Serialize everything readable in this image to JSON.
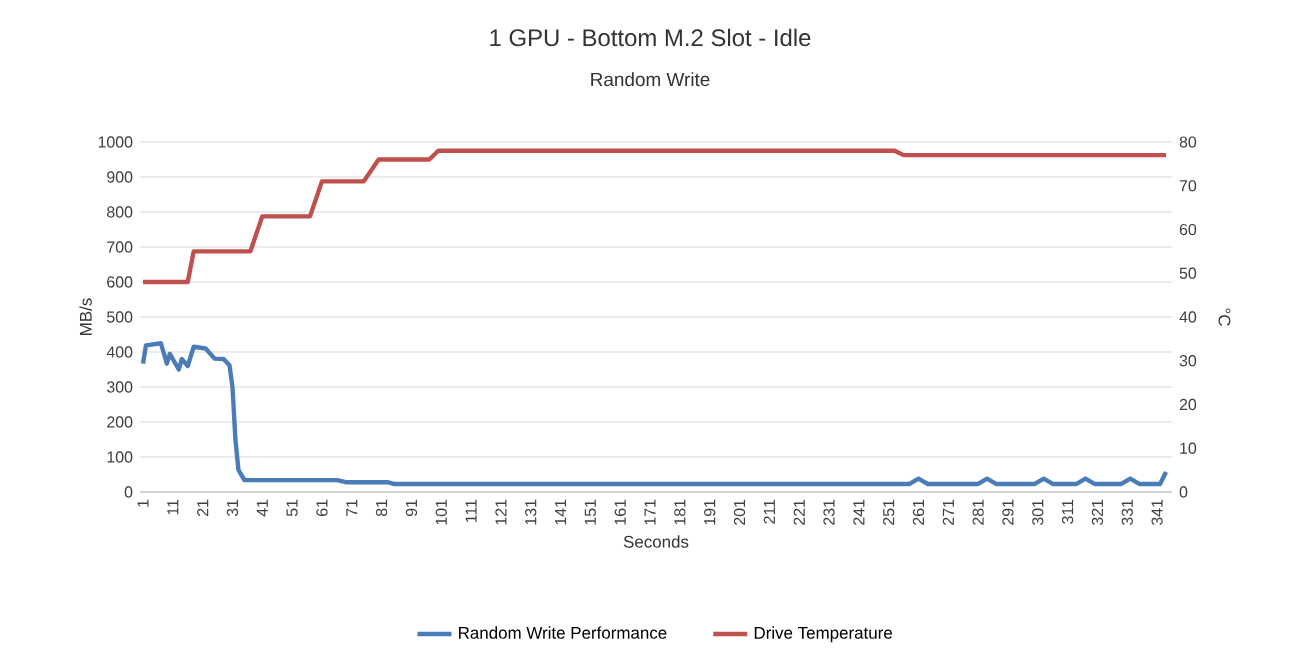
{
  "chart_data": {
    "type": "line",
    "title": "1 GPU - Bottom M.2 Slot - Idle",
    "subtitle": "Random Write",
    "xlabel": "Seconds",
    "ylabel": "MB/s",
    "y2label": "°C",
    "xlim": [
      0,
      346
    ],
    "xticks": [
      1,
      11,
      21,
      31,
      41,
      51,
      61,
      71,
      81,
      91,
      101,
      111,
      121,
      131,
      141,
      151,
      161,
      171,
      181,
      191,
      201,
      211,
      221,
      231,
      241,
      251,
      261,
      271,
      281,
      291,
      301,
      311,
      321,
      331,
      341
    ],
    "ylim": [
      0,
      1000
    ],
    "yticks": [
      0,
      100,
      200,
      300,
      400,
      500,
      600,
      700,
      800,
      900,
      1000
    ],
    "y2lim": [
      0,
      80
    ],
    "y2ticks": [
      0,
      10,
      20,
      30,
      40,
      50,
      60,
      70,
      80
    ],
    "grid": "y",
    "legend": "bottom",
    "series": [
      {
        "name": "Random Write Performance",
        "color": "#4a7db8",
        "x": [
          1,
          2,
          7,
          9,
          10,
          13,
          14,
          16,
          18,
          22,
          25,
          28,
          30,
          31,
          32,
          33,
          35,
          66,
          69,
          83,
          85,
          258,
          261,
          264,
          281,
          284,
          287,
          300,
          303,
          306,
          314,
          317,
          320,
          329,
          332,
          335,
          342,
          344
        ],
        "values": [
          367,
          419,
          425,
          367,
          395,
          350,
          380,
          360,
          415,
          410,
          381,
          380,
          362,
          300,
          149,
          63,
          34,
          34,
          28,
          28,
          23,
          23,
          38,
          23,
          23,
          38,
          23,
          23,
          38,
          23,
          23,
          38,
          23,
          23,
          38,
          23,
          23,
          57
        ]
      },
      {
        "name": "Drive Temperature",
        "color": "#c0504d",
        "axis": "y2",
        "x": [
          1,
          16,
          18,
          37,
          41,
          57,
          61,
          75,
          80,
          97,
          100,
          253,
          256,
          344
        ],
        "values": [
          48,
          48,
          55,
          55,
          63,
          63,
          71,
          71,
          76,
          76,
          78,
          78,
          77,
          77
        ]
      }
    ]
  }
}
